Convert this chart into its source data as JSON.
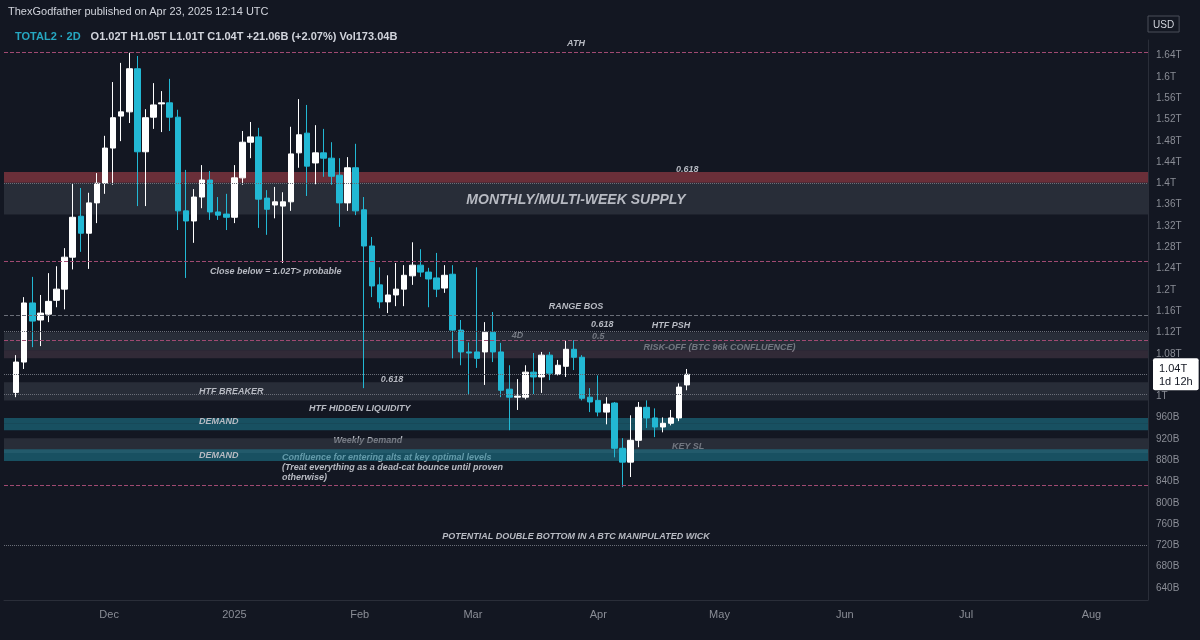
{
  "chart_data": {
    "type": "candlestick",
    "title": "TOTAL2 · 2D",
    "subtitle": "O1.02T H1.05T L1.01T C1.04T +21.06B (+2.07%) Vol173.04B",
    "ylabel": "USD",
    "x": [
      "2024-11-08",
      "2024-11-10",
      "2024-11-12",
      "2024-11-14",
      "2024-11-16",
      "2024-11-18",
      "2024-11-20",
      "2024-11-22",
      "2024-11-24",
      "2024-11-26",
      "2024-11-28",
      "2024-11-30",
      "2024-12-02",
      "2024-12-04",
      "2024-12-06",
      "2024-12-08",
      "2024-12-10",
      "2024-12-12",
      "2024-12-14",
      "2024-12-16",
      "2024-12-18",
      "2024-12-20",
      "2024-12-22",
      "2024-12-24",
      "2024-12-26",
      "2024-12-28",
      "2024-12-30",
      "2025-01-01",
      "2025-01-03",
      "2025-01-05",
      "2025-01-07",
      "2025-01-09",
      "2025-01-11",
      "2025-01-13",
      "2025-01-15",
      "2025-01-17",
      "2025-01-19",
      "2025-01-21",
      "2025-01-23",
      "2025-01-25",
      "2025-01-27",
      "2025-01-29",
      "2025-01-31",
      "2025-02-02",
      "2025-02-04",
      "2025-02-06",
      "2025-02-08",
      "2025-02-10",
      "2025-02-12",
      "2025-02-14",
      "2025-02-16",
      "2025-02-18",
      "2025-02-20",
      "2025-02-22",
      "2025-02-24",
      "2025-02-26",
      "2025-02-28",
      "2025-03-02",
      "2025-03-04",
      "2025-03-06",
      "2025-03-08",
      "2025-03-10",
      "2025-03-12",
      "2025-03-14",
      "2025-03-16",
      "2025-03-18",
      "2025-03-20",
      "2025-03-22",
      "2025-03-24",
      "2025-03-26",
      "2025-03-28",
      "2025-03-30",
      "2025-04-01",
      "2025-04-03",
      "2025-04-05",
      "2025-04-07",
      "2025-04-09",
      "2025-04-11",
      "2025-04-13",
      "2025-04-15",
      "2025-04-17",
      "2025-04-19",
      "2025-04-21",
      "2025-04-23"
    ],
    "ohlc": [
      [
        1006000000000.0,
        1076000000000.0,
        997000000000.0,
        1063000000000.0
      ],
      [
        1063000000000.0,
        1185000000000.0,
        1050000000000.0,
        1174000000000.0
      ],
      [
        1174000000000.0,
        1223000000000.0,
        1091000000000.0,
        1140000000000.0
      ],
      [
        1142000000000.0,
        1189000000000.0,
        1093000000000.0,
        1155000000000.0
      ],
      [
        1153000000000.0,
        1230000000000.0,
        1138000000000.0,
        1177000000000.0
      ],
      [
        1179000000000.0,
        1243000000000.0,
        1166000000000.0,
        1200000000000.0
      ],
      [
        1200000000000.0,
        1277000000000.0,
        1162000000000.0,
        1260000000000.0
      ],
      [
        1260000000000.0,
        1399000000000.0,
        1237000000000.0,
        1335000000000.0
      ],
      [
        1337000000000.0,
        1390000000000.0,
        1270000000000.0,
        1305000000000.0
      ],
      [
        1305000000000.0,
        1381000000000.0,
        1238000000000.0,
        1362000000000.0
      ],
      [
        1362000000000.0,
        1418000000000.0,
        1324000000000.0,
        1399000000000.0
      ],
      [
        1399000000000.0,
        1488000000000.0,
        1379000000000.0,
        1465000000000.0
      ],
      [
        1465000000000.0,
        1589000000000.0,
        1396000000000.0,
        1522000000000.0
      ],
      [
        1525000000000.0,
        1625000000000.0,
        1478000000000.0,
        1533000000000.0
      ],
      [
        1533000000000.0,
        1644000000000.0,
        1512000000000.0,
        1614000000000.0
      ],
      [
        1614000000000.0,
        1638000000000.0,
        1356000000000.0,
        1458000000000.0
      ],
      [
        1458000000000.0,
        1538000000000.0,
        1356000000000.0,
        1522000000000.0
      ],
      [
        1523000000000.0,
        1587000000000.0,
        1501000000000.0,
        1546000000000.0
      ],
      [
        1548000000000.0,
        1572000000000.0,
        1495000000000.0,
        1550000000000.0
      ],
      [
        1550000000000.0,
        1595000000000.0,
        1497000000000.0,
        1523000000000.0
      ],
      [
        1523000000000.0,
        1537000000000.0,
        1311000000000.0,
        1347000000000.0
      ],
      [
        1347000000000.0,
        1424000000000.0,
        1221000000000.0,
        1328000000000.0
      ],
      [
        1328000000000.0,
        1388000000000.0,
        1287000000000.0,
        1373000000000.0
      ],
      [
        1373000000000.0,
        1433000000000.0,
        1352000000000.0,
        1405000000000.0
      ],
      [
        1405000000000.0,
        1422000000000.0,
        1330000000000.0,
        1345000000000.0
      ],
      [
        1345000000000.0,
        1373000000000.0,
        1330000000000.0,
        1339000000000.0
      ],
      [
        1341000000000.0,
        1379000000000.0,
        1311000000000.0,
        1335000000000.0
      ],
      [
        1335000000000.0,
        1433000000000.0,
        1324000000000.0,
        1409000000000.0
      ],
      [
        1409000000000.0,
        1497000000000.0,
        1396000000000.0,
        1476000000000.0
      ],
      [
        1476000000000.0,
        1514000000000.0,
        1446000000000.0,
        1486000000000.0
      ],
      [
        1486000000000.0,
        1503000000000.0,
        1315000000000.0,
        1369000000000.0
      ],
      [
        1371000000000.0,
        1386000000000.0,
        1302000000000.0,
        1350000000000.0
      ],
      [
        1358000000000.0,
        1392000000000.0,
        1333000000000.0,
        1364000000000.0
      ],
      [
        1356000000000.0,
        1382000000000.0,
        1249000000000.0,
        1364000000000.0
      ],
      [
        1364000000000.0,
        1505000000000.0,
        1347000000000.0,
        1454000000000.0
      ],
      [
        1456000000000.0,
        1557000000000.0,
        1428000000000.0,
        1490000000000.0
      ],
      [
        1493000000000.0,
        1546000000000.0,
        1375000000000.0,
        1431000000000.0
      ],
      [
        1437000000000.0,
        1508000000000.0,
        1397000000000.0,
        1456000000000.0
      ],
      [
        1456000000000.0,
        1501000000000.0,
        1411000000000.0,
        1446000000000.0
      ],
      [
        1446000000000.0,
        1476000000000.0,
        1396000000000.0,
        1412000000000.0
      ],
      [
        1414000000000.0,
        1446000000000.0,
        1317000000000.0,
        1362000000000.0
      ],
      [
        1362000000000.0,
        1448000000000.0,
        1347000000000.0,
        1428000000000.0
      ],
      [
        1428000000000.0,
        1473000000000.0,
        1339000000000.0,
        1347000000000.0
      ],
      [
        1349000000000.0,
        1373000000000.0,
        1014000000000.0,
        1281000000000.0
      ],
      [
        1281000000000.0,
        1298000000000.0,
        1185000000000.0,
        1206000000000.0
      ],
      [
        1208000000000.0,
        1241000000000.0,
        1164000000000.0,
        1176000000000.0
      ],
      [
        1176000000000.0,
        1226000000000.0,
        1155000000000.0,
        1189000000000.0
      ],
      [
        1189000000000.0,
        1249000000000.0,
        1168000000000.0,
        1200000000000.0
      ],
      [
        1200000000000.0,
        1245000000000.0,
        1168000000000.0,
        1226000000000.0
      ],
      [
        1225000000000.0,
        1288000000000.0,
        1208000000000.0,
        1245000000000.0
      ],
      [
        1245000000000.0,
        1275000000000.0,
        1223000000000.0,
        1232000000000.0
      ],
      [
        1232000000000.0,
        1240000000000.0,
        1166000000000.0,
        1219000000000.0
      ],
      [
        1221000000000.0,
        1268000000000.0,
        1185000000000.0,
        1200000000000.0
      ],
      [
        1202000000000.0,
        1245000000000.0,
        1193000000000.0,
        1226000000000.0
      ],
      [
        1228000000000.0,
        1245000000000.0,
        1070000000000.0,
        1123000000000.0
      ],
      [
        1123000000000.0,
        1142000000000.0,
        1057000000000.0,
        1082000000000.0
      ],
      [
        1082000000000.0,
        1100000000000.0,
        1001000000000.0,
        1080000000000.0
      ],
      [
        1082000000000.0,
        1241000000000.0,
        1052000000000.0,
        1070000000000.0
      ],
      [
        1082000000000.0,
        1138000000000.0,
        1020000000000.0,
        1119000000000.0
      ],
      [
        1119000000000.0,
        1157000000000.0,
        1063000000000.0,
        1082000000000.0
      ],
      [
        1082000000000.0,
        1099000000000.0,
        997000000000.0,
        1010000000000.0
      ],
      [
        1012000000000.0,
        1057000000000.0,
        935000000000.0,
        997000000000.0
      ],
      [
        997000000000.0,
        1031000000000.0,
        973000000000.0,
        999000000000.0
      ],
      [
        997000000000.0,
        1057000000000.0,
        993000000000.0,
        1044000000000.0
      ],
      [
        1044000000000.0,
        1080000000000.0,
        1003000000000.0,
        1035000000000.0
      ],
      [
        1035000000000.0,
        1082000000000.0,
        1005000000000.0,
        1076000000000.0
      ],
      [
        1076000000000.0,
        1082000000000.0,
        1029000000000.0,
        1042000000000.0
      ],
      [
        1040000000000.0,
        1067000000000.0,
        1038000000000.0,
        1057000000000.0
      ],
      [
        1055000000000.0,
        1104000000000.0,
        1035000000000.0,
        1087000000000.0
      ],
      [
        1087000000000.0,
        1104000000000.0,
        1048000000000.0,
        1072000000000.0
      ],
      [
        1072000000000.0,
        1076000000000.0,
        991000000000.0,
        995000000000.0
      ],
      [
        997000000000.0,
        1014000000000.0,
        969000000000.0,
        988000000000.0
      ],
      [
        991000000000.0,
        1038000000000.0,
        961000000000.0,
        969000000000.0
      ],
      [
        969000000000.0,
        997000000000.0,
        946000000000.0,
        984000000000.0
      ],
      [
        986000000000.0,
        988000000000.0,
        884000000000.0,
        901000000000.0
      ],
      [
        901000000000.0,
        920000000000.0,
        828000000000.0,
        875000000000.0
      ],
      [
        875000000000.0,
        963000000000.0,
        847000000000.0,
        916000000000.0
      ],
      [
        916000000000.0,
        988000000000.0,
        903000000000.0,
        978000000000.0
      ],
      [
        978000000000.0,
        991000000000.0,
        939000000000.0,
        958000000000.0
      ],
      [
        958000000000.0,
        976000000000.0,
        922000000000.0,
        941000000000.0
      ],
      [
        941000000000.0,
        959000000000.0,
        931000000000.0,
        948000000000.0
      ],
      [
        948000000000.0,
        973000000000.0,
        944000000000.0,
        958000000000.0
      ],
      [
        958000000000.0,
        1023000000000.0,
        952000000000.0,
        1016000000000.0
      ],
      [
        1020000000000.0,
        1050000000000.0,
        1010000000000.0,
        1040000000000.0
      ]
    ],
    "colors": [
      "#ffffff",
      "#ffffff",
      "#22b8d4",
      "#ffffff",
      "#ffffff",
      "#ffffff",
      "#ffffff",
      "#ffffff",
      "#22b8d4",
      "#ffffff",
      "#ffffff",
      "#ffffff",
      "#ffffff",
      "#ffffff",
      "#ffffff",
      "#22b8d4",
      "#ffffff",
      "#ffffff",
      "#ffffff",
      "#22b8d4",
      "#22b8d4",
      "#22b8d4",
      "#ffffff",
      "#ffffff",
      "#22b8d4",
      "#22b8d4",
      "#22b8d4",
      "#ffffff",
      "#ffffff",
      "#ffffff",
      "#22b8d4",
      "#22b8d4",
      "#ffffff",
      "#ffffff",
      "#ffffff",
      "#ffffff",
      "#22b8d4",
      "#ffffff",
      "#22b8d4",
      "#22b8d4",
      "#22b8d4",
      "#ffffff",
      "#22b8d4",
      "#22b8d4",
      "#22b8d4",
      "#22b8d4",
      "#ffffff",
      "#ffffff",
      "#ffffff",
      "#ffffff",
      "#22b8d4",
      "#22b8d4",
      "#22b8d4",
      "#ffffff",
      "#22b8d4",
      "#22b8d4",
      "#22b8d4",
      "#22b8d4",
      "#ffffff",
      "#22b8d4",
      "#22b8d4",
      "#22b8d4",
      "#ffffff",
      "#ffffff",
      "#22b8d4",
      "#ffffff",
      "#22b8d4",
      "#ffffff",
      "#ffffff",
      "#22b8d4",
      "#22b8d4",
      "#22b8d4",
      "#22b8d4",
      "#ffffff",
      "#22b8d4",
      "#22b8d4",
      "#ffffff",
      "#ffffff",
      "#22b8d4",
      "#22b8d4",
      "#ffffff",
      "#ffffff",
      "#ffffff",
      "#ffffff"
    ],
    "xlim": [
      "2024-11-05",
      "2025-08-15"
    ],
    "xticks": [
      {
        "value": "2024-12-01",
        "label": "Dec"
      },
      {
        "value": "2025-01-01",
        "label": "2025"
      },
      {
        "value": "2025-02-01",
        "label": "Feb"
      },
      {
        "value": "2025-03-01",
        "label": "Mar"
      },
      {
        "value": "2025-04-01",
        "label": "Apr"
      },
      {
        "value": "2025-05-01",
        "label": "May"
      },
      {
        "value": "2025-06-01",
        "label": "Jun"
      },
      {
        "value": "2025-07-01",
        "label": "Jul"
      },
      {
        "value": "2025-08-01",
        "label": "Aug"
      }
    ],
    "ylim": [
      616000000000.0,
      1668000000000.0
    ],
    "yticks": [
      {
        "value": 640000000000.0,
        "label": "640B"
      },
      {
        "value": 680000000000.0,
        "label": "680B"
      },
      {
        "value": 720000000000.0,
        "label": "720B"
      },
      {
        "value": 760000000000.0,
        "label": "760B"
      },
      {
        "value": 800000000000.0,
        "label": "800B"
      },
      {
        "value": 840000000000.0,
        "label": "840B"
      },
      {
        "value": 880000000000.0,
        "label": "880B"
      },
      {
        "value": 920000000000.0,
        "label": "920B"
      },
      {
        "value": 960000000000.0,
        "label": "960B"
      },
      {
        "value": 1000000000000.0,
        "label": "1T"
      },
      {
        "value": 1080000000000.0,
        "label": "1.08T"
      },
      {
        "value": 1120000000000.0,
        "label": "1.12T"
      },
      {
        "value": 1160000000000.0,
        "label": "1.16T"
      },
      {
        "value": 1200000000000.0,
        "label": "1.2T"
      },
      {
        "value": 1240000000000.0,
        "label": "1.24T"
      },
      {
        "value": 1280000000000.0,
        "label": "1.28T"
      },
      {
        "value": 1320000000000.0,
        "label": "1.32T"
      },
      {
        "value": 1360000000000.0,
        "label": "1.36T"
      },
      {
        "value": 1400000000000.0,
        "label": "1.4T"
      },
      {
        "value": 1440000000000.0,
        "label": "1.44T"
      },
      {
        "value": 1480000000000.0,
        "label": "1.48T"
      },
      {
        "value": 1520000000000.0,
        "label": "1.52T"
      },
      {
        "value": 1560000000000.0,
        "label": "1.56T"
      },
      {
        "value": 1600000000000.0,
        "label": "1.6T"
      },
      {
        "value": 1640000000000.0,
        "label": "1.64T"
      }
    ],
    "grid": false,
    "bands": [
      {
        "axis": "y",
        "from": 1400000000000.0,
        "to": 1420000000000.0,
        "color": "#b2434d"
      },
      {
        "axis": "y",
        "from": 1340000000000.0,
        "to": 1400000000000.0,
        "color": "#3a3f4b",
        "label": "MONTHLY/MULTI-WEEK SUPPLY"
      },
      {
        "axis": "y",
        "from": 1085000000000.0,
        "to": 1119000000000.0,
        "color": "#3a3f4b"
      },
      {
        "axis": "y",
        "from": 1070000000000.0,
        "to": 1085000000000.0,
        "color": "#4a3a48"
      },
      {
        "axis": "y",
        "from": 991000000000.0,
        "to": 1025000000000.0,
        "color": "#3a3f4b",
        "label": "HTF BREAKER"
      },
      {
        "axis": "y",
        "from": 935000000000.0,
        "to": 948000000000.0,
        "color": "#1e7f96"
      },
      {
        "axis": "y",
        "from": 948000000000.0,
        "to": 958000000000.0,
        "color": "#1e7f96",
        "label": "DEMAND"
      },
      {
        "axis": "y",
        "from": 892000000000.0,
        "to": 920000000000.0,
        "color": "#3a3f4b"
      },
      {
        "axis": "y",
        "from": 877000000000.0,
        "to": 899000000000.0,
        "color": "#1e7f96",
        "label": "DEMAND"
      }
    ],
    "ref_lines": [
      {
        "axis": "y",
        "value": 1645000000000.0,
        "color": "#a04a72",
        "line_style": "dashed",
        "label": "ATH"
      },
      {
        "axis": "y",
        "value": 1398000000000.0,
        "color": "#6a6e78",
        "line_style": "dotted"
      },
      {
        "axis": "y",
        "value": 1253000000000.0,
        "color": "#a04a72",
        "line_style": "dashed"
      },
      {
        "axis": "y",
        "value": 1151000000000.0,
        "color": "#6a6e78",
        "line_style": "dashed",
        "label": "RANGE BOS"
      },
      {
        "axis": "y",
        "value": 1120000000000.0,
        "color": "#6a6e78",
        "line_style": "dotted"
      },
      {
        "axis": "y",
        "value": 1104000000000.0,
        "color": "#a04a72",
        "line_style": "dashed"
      },
      {
        "axis": "y",
        "value": 1003000000000.0,
        "color": "#6a6e78",
        "line_style": "dotted"
      },
      {
        "axis": "y",
        "value": 1040000000000.0,
        "color": "#6a6e78",
        "line_style": "dotted",
        "label": "1.04T\n1d 12h"
      },
      {
        "axis": "y",
        "value": 832000000000.0,
        "color": "#a04a72",
        "line_style": "dashed"
      },
      {
        "axis": "y",
        "value": 719000000000.0,
        "color": "#6a6e78",
        "line_style": "dotted",
        "label": "POTENTIAL DOUBLE BOTTOM IN A BTC MANIPULATED WICK"
      }
    ],
    "annotations": [
      "ThexGodfather published on Apr 23, 2025 12:14 UTC",
      {
        "text": "0.618",
        "x": "2025-04-23",
        "y": 1411000000000.0
      },
      {
        "text": "4D",
        "x": "2025-03-12",
        "y": 1099000000000.0
      },
      {
        "text": "0.5",
        "x": "2025-04-01",
        "y": 1097000000000.0
      },
      {
        "text": "HTF PSH",
        "x": "2025-04-19",
        "y": 1119000000000.0
      },
      {
        "text": "RISK-OFF (BTC 96k CONFLUENCE)",
        "x": "2025-05-01",
        "y": 1078000000000.0
      },
      {
        "text": "0.618",
        "x": "2025-02-09",
        "y": 1018000000000.0
      },
      {
        "text": "HTF HIDDEN LIQUIDITY",
        "x": "2025-02-01",
        "y": 963000000000.0
      },
      {
        "text": "Weekly Demand",
        "x": "2025-02-03",
        "y": 903000000000.0
      },
      {
        "text": "0.618",
        "x": "2025-04-02",
        "y": 1120000000000.0
      },
      "Confluence for entering alts at key optimal levels\n(Treat everything as a dead-cat bounce until proven\notherwise)",
      "Close below = 1.02T> probable",
      "KEY SL"
    ]
  }
}
